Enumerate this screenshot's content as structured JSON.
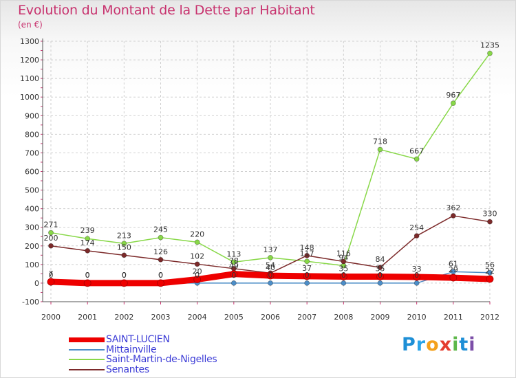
{
  "title": "Evolution du Montant de la Dette par Habitant",
  "unit": "(en €)",
  "logo": "Proxiti",
  "chart_data": {
    "type": "line",
    "title": "Evolution du Montant de la Dette par Habitant",
    "ylabel": "(en €)",
    "xlabel": "",
    "ylim": [
      -100,
      1300
    ],
    "yticks": [
      -100,
      0,
      100,
      200,
      300,
      400,
      500,
      600,
      700,
      800,
      900,
      1000,
      1100,
      1200,
      1300
    ],
    "grid": true,
    "legend_position": "bottom",
    "x": [
      "2000",
      "2001",
      "2002",
      "2003",
      "2004",
      "2005",
      "2006",
      "2007",
      "2008",
      "2009",
      "2010",
      "2011",
      "2012"
    ],
    "series": [
      {
        "name": "SAINT-LUCIEN",
        "color": "#ee0000",
        "values": [
          7,
          0,
          0,
          0,
          20,
          49,
          40,
          37,
          35,
          35,
          33,
          29,
          22
        ],
        "labels": [
          "7",
          "0",
          "0",
          "0",
          "20",
          "49",
          "40",
          "37",
          "35",
          "35",
          "33",
          "29",
          "22"
        ]
      },
      {
        "name": "Mittainville",
        "color": "#4c8ec8",
        "values": [
          0,
          0,
          0,
          0,
          0,
          0,
          0,
          0,
          0,
          0,
          0,
          61,
          56
        ],
        "labels": [
          "0",
          "0",
          "0",
          "0",
          "0",
          "0",
          "0",
          "0",
          "0",
          "0",
          "0",
          "61",
          "56"
        ]
      },
      {
        "name": "Saint-Martin-de-Nigelles",
        "color": "#88d848",
        "values": [
          271,
          239,
          213,
          245,
          220,
          113,
          137,
          117,
          94,
          718,
          667,
          967,
          1235
        ],
        "labels": [
          "271",
          "239",
          "213",
          "245",
          "220",
          "113",
          "137",
          "117",
          "94",
          "718",
          "667",
          "967",
          "1235"
        ]
      },
      {
        "name": "Senantes",
        "color": "#7c2a2a",
        "values": [
          200,
          174,
          150,
          126,
          102,
          78,
          54,
          148,
          116,
          84,
          254,
          362,
          330
        ],
        "labels": [
          "200",
          "174",
          "150",
          "126",
          "102",
          "78",
          "54",
          "148",
          "116",
          "84",
          "254",
          "362",
          "330"
        ]
      }
    ]
  },
  "colors": {
    "title": "#c8326e",
    "legend_text": "#3b3bd6",
    "grid": "#cfcfcf"
  }
}
